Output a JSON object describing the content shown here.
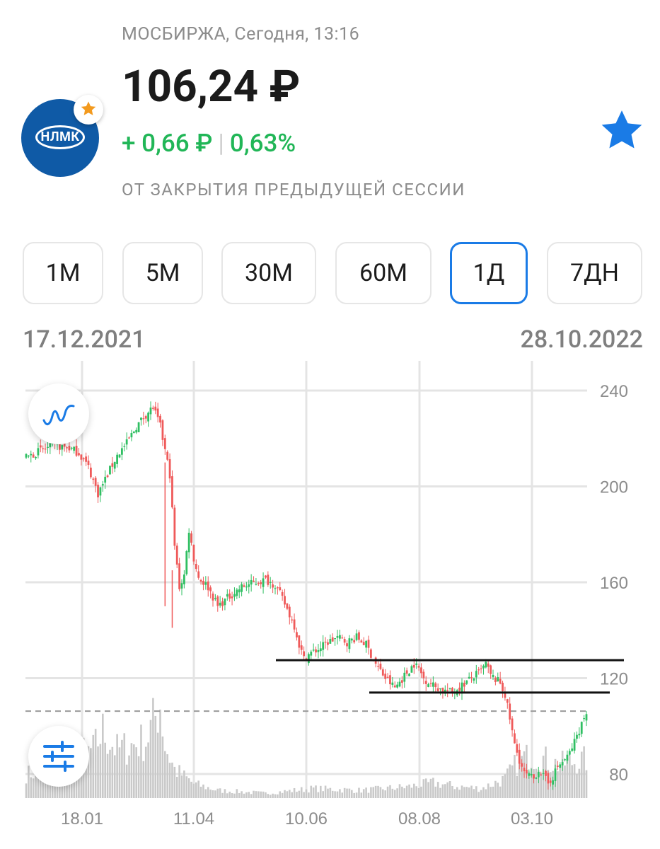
{
  "header": {
    "exchange_line": "МОСБИРЖА, Сегодня, 13:16",
    "price": "106,24 ₽",
    "change_abs": "+ 0,66 ₽",
    "change_pct": "0,63%",
    "change_note": "ОТ ЗАКРЫТИЯ ПРЕДЫДУЩЕЙ СЕССИИ",
    "logo_text": "НЛМК"
  },
  "periods": [
    {
      "label": "1М",
      "active": false
    },
    {
      "label": "5М",
      "active": false
    },
    {
      "label": "30М",
      "active": false
    },
    {
      "label": "60М",
      "active": false
    },
    {
      "label": "1Д",
      "active": true
    },
    {
      "label": "7ДН",
      "active": false
    }
  ],
  "range": {
    "start": "17.12.2021",
    "end": "28.10.2022"
  },
  "icons": [
    "star-badge-icon",
    "favorite-star-icon",
    "line-chart-icon",
    "settings-sliders-icon"
  ],
  "colors": {
    "up": "#2fbf62",
    "down": "#ef5a5a",
    "accent": "#1a7be6",
    "positive_text": "#21b657",
    "volume": "#c9c9c9"
  },
  "chart_data": {
    "type": "candlestick",
    "y_ticks": [
      240,
      200,
      160,
      120,
      80
    ],
    "ylim": [
      70,
      245
    ],
    "x_ticks": [
      "18.01",
      "11.04",
      "10.06",
      "08.08",
      "03.10"
    ],
    "last_price": 106.24,
    "close_path": [
      [
        0,
        212
      ],
      [
        6,
        215
      ],
      [
        12,
        217
      ],
      [
        18,
        216
      ],
      [
        22,
        214
      ],
      [
        26,
        208
      ],
      [
        30,
        197
      ],
      [
        34,
        205
      ],
      [
        38,
        213
      ],
      [
        42,
        218
      ],
      [
        46,
        225
      ],
      [
        50,
        230
      ],
      [
        53,
        233
      ],
      [
        56,
        225
      ],
      [
        58,
        215
      ],
      [
        60,
        205
      ],
      [
        62,
        175
      ],
      [
        64,
        158
      ],
      [
        66,
        163
      ],
      [
        68,
        182
      ],
      [
        70,
        170
      ],
      [
        72,
        162
      ],
      [
        76,
        158
      ],
      [
        80,
        150
      ],
      [
        86,
        155
      ],
      [
        90,
        158
      ],
      [
        96,
        160
      ],
      [
        100,
        161
      ],
      [
        104,
        159
      ],
      [
        108,
        151
      ],
      [
        112,
        142
      ],
      [
        114,
        134
      ],
      [
        116,
        128
      ],
      [
        118,
        130
      ],
      [
        122,
        132
      ],
      [
        126,
        135
      ],
      [
        130,
        137
      ],
      [
        134,
        135
      ],
      [
        138,
        137
      ],
      [
        142,
        134
      ],
      [
        146,
        126
      ],
      [
        150,
        120
      ],
      [
        154,
        116
      ],
      [
        158,
        121
      ],
      [
        162,
        126
      ],
      [
        164,
        124
      ],
      [
        166,
        120
      ],
      [
        170,
        117
      ],
      [
        174,
        115
      ],
      [
        178,
        114
      ],
      [
        182,
        117
      ],
      [
        186,
        120
      ],
      [
        190,
        123
      ],
      [
        192,
        126
      ],
      [
        194,
        121
      ],
      [
        198,
        118
      ],
      [
        200,
        113
      ],
      [
        202,
        103
      ],
      [
        204,
        92
      ],
      [
        206,
        86
      ],
      [
        208,
        80
      ],
      [
        212,
        78
      ],
      [
        214,
        82
      ],
      [
        216,
        79
      ],
      [
        218,
        76
      ],
      [
        220,
        79
      ],
      [
        222,
        83
      ],
      [
        226,
        87
      ],
      [
        228,
        91
      ],
      [
        230,
        96
      ],
      [
        232,
        101
      ],
      [
        234,
        106
      ]
    ],
    "volume_profile": [
      [
        0,
        0.25
      ],
      [
        10,
        0.3
      ],
      [
        20,
        0.45
      ],
      [
        28,
        0.5
      ],
      [
        32,
        0.7
      ],
      [
        38,
        0.5
      ],
      [
        44,
        0.55
      ],
      [
        50,
        0.6
      ],
      [
        54,
        0.85
      ],
      [
        56,
        1.0
      ],
      [
        58,
        0.55
      ],
      [
        62,
        0.3
      ],
      [
        70,
        0.15
      ],
      [
        80,
        0.08
      ],
      [
        100,
        0.05
      ],
      [
        120,
        0.1
      ],
      [
        140,
        0.08
      ],
      [
        160,
        0.12
      ],
      [
        170,
        0.16
      ],
      [
        180,
        0.12
      ],
      [
        190,
        0.1
      ],
      [
        200,
        0.2
      ],
      [
        206,
        0.4
      ],
      [
        212,
        0.45
      ],
      [
        222,
        0.35
      ],
      [
        234,
        0.4
      ]
    ],
    "trendlines": [
      {
        "x1": 108,
        "x2": 234,
        "y": 127.5
      },
      {
        "x1": 145,
        "x2": 234,
        "y": 114
      }
    ]
  }
}
